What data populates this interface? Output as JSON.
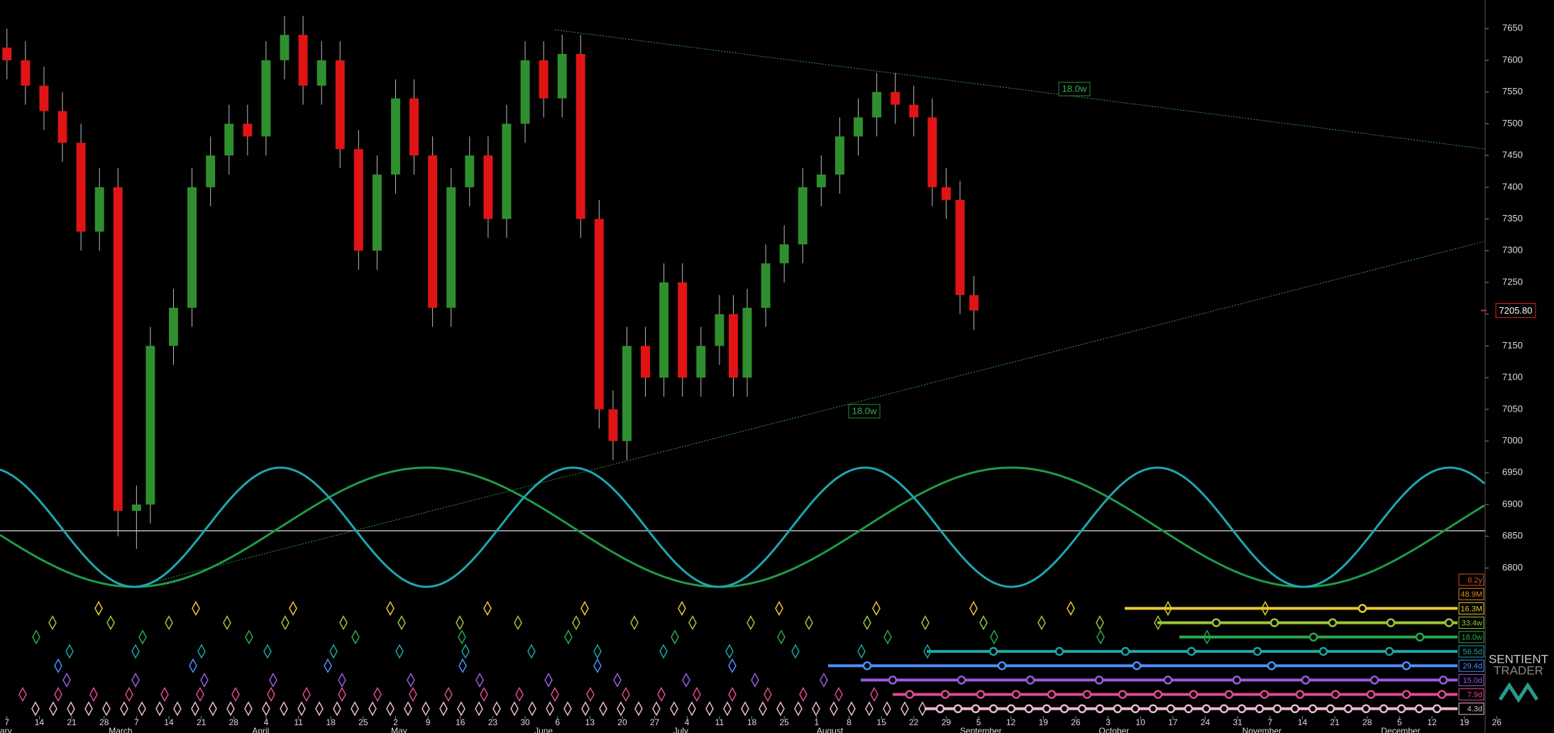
{
  "chart_data": {
    "type": "candlestick",
    "x": [
      0,
      4,
      8,
      12,
      16,
      20,
      24,
      28,
      31,
      36,
      40,
      44,
      48,
      52,
      56,
      60,
      64,
      68,
      72,
      76,
      80,
      84,
      88,
      92,
      96,
      100,
      104,
      108,
      112,
      116,
      120,
      124,
      128,
      131,
      134,
      138,
      142,
      146,
      150,
      154,
      157,
      160,
      164,
      168,
      172,
      176,
      180,
      184,
      188,
      192,
      196,
      200,
      203,
      206,
      209
    ],
    "open": [
      7620,
      7600,
      7560,
      7520,
      7470,
      7330,
      7400,
      6890,
      6900,
      7150,
      7210,
      7400,
      7450,
      7500,
      7480,
      7600,
      7640,
      7560,
      7600,
      7460,
      7300,
      7420,
      7540,
      7450,
      7210,
      7400,
      7450,
      7350,
      7500,
      7600,
      7540,
      7610,
      7350,
      7050,
      7000,
      7150,
      7100,
      7250,
      7100,
      7150,
      7200,
      7100,
      7210,
      7280,
      7310,
      7400,
      7420,
      7480,
      7510,
      7550,
      7530,
      7510,
      7400,
      7380,
      7230
    ],
    "high": [
      7650,
      7630,
      7590,
      7550,
      7500,
      7430,
      7430,
      6930,
      7180,
      7240,
      7430,
      7480,
      7530,
      7530,
      7630,
      7670,
      7670,
      7630,
      7630,
      7490,
      7450,
      7570,
      7570,
      7480,
      7430,
      7480,
      7480,
      7530,
      7630,
      7630,
      7640,
      7640,
      7380,
      7080,
      7180,
      7180,
      7280,
      7280,
      7180,
      7230,
      7230,
      7240,
      7310,
      7340,
      7430,
      7450,
      7510,
      7540,
      7580,
      7580,
      7560,
      7540,
      7430,
      7410,
      7260
    ],
    "low": [
      7570,
      7530,
      7490,
      7440,
      7300,
      7300,
      6850,
      6830,
      6870,
      7120,
      7180,
      7370,
      7420,
      7450,
      7450,
      7570,
      7530,
      7530,
      7430,
      7270,
      7270,
      7390,
      7420,
      7180,
      7180,
      7370,
      7320,
      7320,
      7470,
      7510,
      7510,
      7320,
      7020,
      6970,
      6970,
      7070,
      7070,
      7070,
      7070,
      7120,
      7070,
      7070,
      7180,
      7250,
      7280,
      7370,
      7390,
      7450,
      7480,
      7500,
      7480,
      7370,
      7350,
      7200,
      7175
    ],
    "close": [
      7600,
      7560,
      7520,
      7470,
      7330,
      7400,
      6890,
      6900,
      7150,
      7210,
      7400,
      7450,
      7500,
      7480,
      7600,
      7640,
      7560,
      7600,
      7460,
      7300,
      7420,
      7540,
      7450,
      7210,
      7400,
      7450,
      7350,
      7500,
      7600,
      7540,
      7610,
      7350,
      7050,
      7000,
      7150,
      7100,
      7250,
      7100,
      7150,
      7200,
      7100,
      7210,
      7280,
      7310,
      7400,
      7420,
      7480,
      7510,
      7550,
      7530,
      7510,
      7400,
      7380,
      7230,
      7205.8
    ],
    "up_color": "#2f8f2f",
    "down_color": "#e01414",
    "xlim": [
      -1.5,
      319.5
    ],
    "ylim": [
      6540,
      7695
    ],
    "yticks": [
      7650,
      7600,
      7550,
      7500,
      7450,
      7400,
      7350,
      7300,
      7250,
      7200,
      7150,
      7100,
      7050,
      7000,
      6950,
      6900,
      6850,
      6800
    ],
    "xticks": [
      {
        "value": 0,
        "label": "7"
      },
      {
        "value": 7,
        "label": "14"
      },
      {
        "value": 14,
        "label": "21"
      },
      {
        "value": 21,
        "label": "28"
      },
      {
        "value": 28,
        "label": "7"
      },
      {
        "value": 35,
        "label": "14"
      },
      {
        "value": 42,
        "label": "21"
      },
      {
        "value": 49,
        "label": "28"
      },
      {
        "value": 56,
        "label": "4"
      },
      {
        "value": 63,
        "label": "11"
      },
      {
        "value": 70,
        "label": "18"
      },
      {
        "value": 77,
        "label": "25"
      },
      {
        "value": 84,
        "label": "2"
      },
      {
        "value": 91,
        "label": "9"
      },
      {
        "value": 98,
        "label": "16"
      },
      {
        "value": 105,
        "label": "23"
      },
      {
        "value": 112,
        "label": "30"
      },
      {
        "value": 119,
        "label": "6"
      },
      {
        "value": 126,
        "label": "13"
      },
      {
        "value": 133,
        "label": "20"
      },
      {
        "value": 140,
        "label": "27"
      },
      {
        "value": 147,
        "label": "4"
      },
      {
        "value": 154,
        "label": "11"
      },
      {
        "value": 161,
        "label": "18"
      },
      {
        "value": 168,
        "label": "25"
      },
      {
        "value": 175,
        "label": "1"
      },
      {
        "value": 182,
        "label": "8"
      },
      {
        "value": 189,
        "label": "15"
      },
      {
        "value": 196,
        "label": "22"
      },
      {
        "value": 203,
        "label": "29"
      },
      {
        "value": 210,
        "label": "5"
      },
      {
        "value": 217,
        "label": "12"
      },
      {
        "value": 224,
        "label": "19"
      },
      {
        "value": 231,
        "label": "26"
      },
      {
        "value": 238,
        "label": "3"
      },
      {
        "value": 245,
        "label": "10"
      },
      {
        "value": 252,
        "label": "17"
      },
      {
        "value": 259,
        "label": "24"
      },
      {
        "value": 266,
        "label": "31"
      },
      {
        "value": 273,
        "label": "7"
      },
      {
        "value": 280,
        "label": "14"
      },
      {
        "value": 287,
        "label": "21"
      },
      {
        "value": 294,
        "label": "28"
      },
      {
        "value": 301,
        "label": "5"
      },
      {
        "value": 308,
        "label": "12"
      },
      {
        "value": 315,
        "label": "19"
      },
      {
        "value": 322,
        "label": "26"
      }
    ],
    "months": [
      {
        "value": -1.5,
        "label": "ary"
      },
      {
        "value": 22,
        "label": "March"
      },
      {
        "value": 53,
        "label": "April"
      },
      {
        "value": 83,
        "label": "May"
      },
      {
        "value": 114,
        "label": "June"
      },
      {
        "value": 144,
        "label": "July"
      },
      {
        "value": 175,
        "label": "August"
      },
      {
        "value": 206,
        "label": "September"
      },
      {
        "value": 236,
        "label": "October"
      },
      {
        "value": 267,
        "label": "November"
      },
      {
        "value": 297,
        "label": "December"
      }
    ],
    "price_label": {
      "value": 7205.8,
      "label": "7205.80"
    },
    "trendline_labels": [
      "18.0w",
      "18.0w"
    ],
    "cycles": [
      {
        "name": "8.2y",
        "color": "#d8502c"
      },
      {
        "name": "48.9M",
        "color": "#e08a24"
      },
      {
        "name": "16.3M",
        "color": "#e8c830"
      },
      {
        "name": "33.4w",
        "color": "#98c83a"
      },
      {
        "name": "18.0w",
        "color": "#2aa84a"
      },
      {
        "name": "56.5d",
        "color": "#1aa6a6"
      },
      {
        "name": "29.4d",
        "color": "#4a90ff"
      },
      {
        "name": "15.0d",
        "color": "#9a5ae0"
      },
      {
        "name": "7.9d",
        "color": "#e04a90"
      },
      {
        "name": "4.3d",
        "color": "#eab8d2"
      }
    ],
    "watermark": [
      "SENTIENT",
      "TRADER"
    ]
  }
}
